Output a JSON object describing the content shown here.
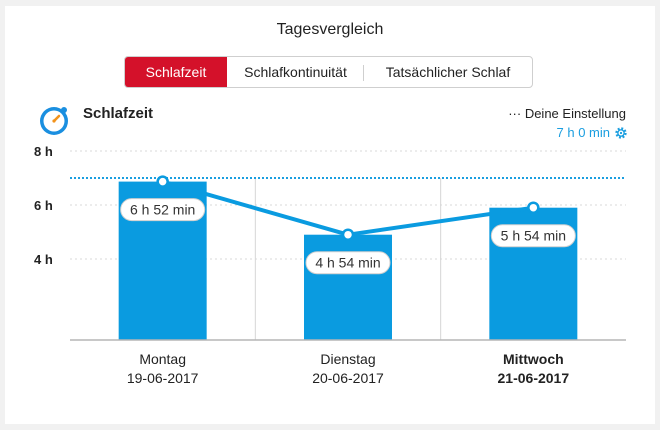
{
  "title": "Tagesvergleich",
  "tabs": [
    {
      "label": "Schlafzeit",
      "active": true
    },
    {
      "label": "Schlafkontinuität",
      "active": false
    },
    {
      "label": "Tatsächlicher Schlaf",
      "active": false
    }
  ],
  "section": {
    "title": "Schlafzeit",
    "icon": "sleep-clock-icon"
  },
  "setting": {
    "label": "··· Deine Einstellung",
    "value": "7 h 0 min",
    "icon": "gear-icon"
  },
  "colors": {
    "accent_red": "#d4112a",
    "bar_blue": "#0a9be0",
    "line_blue": "#0a9be0",
    "target_line": "#1a9ee0",
    "link_blue": "#1a9ee0"
  },
  "chart_data": {
    "type": "bar",
    "categories": [
      "Montag",
      "Dienstag",
      "Mittwoch"
    ],
    "dates": [
      "19-06-2017",
      "20-06-2017",
      "21-06-2017"
    ],
    "highlighted": [
      false,
      false,
      true
    ],
    "values_minutes": [
      412,
      294,
      354
    ],
    "data_labels": [
      "6 h 52 min",
      "4 h 54 min",
      "5 h 54 min"
    ],
    "target_minutes": 420,
    "yticks": [
      "8 h",
      "6 h",
      "4 h"
    ],
    "ytick_values_hours": [
      8,
      6,
      4
    ],
    "ylim_hours": [
      1,
      8
    ],
    "overlay": "line",
    "grid": true
  }
}
